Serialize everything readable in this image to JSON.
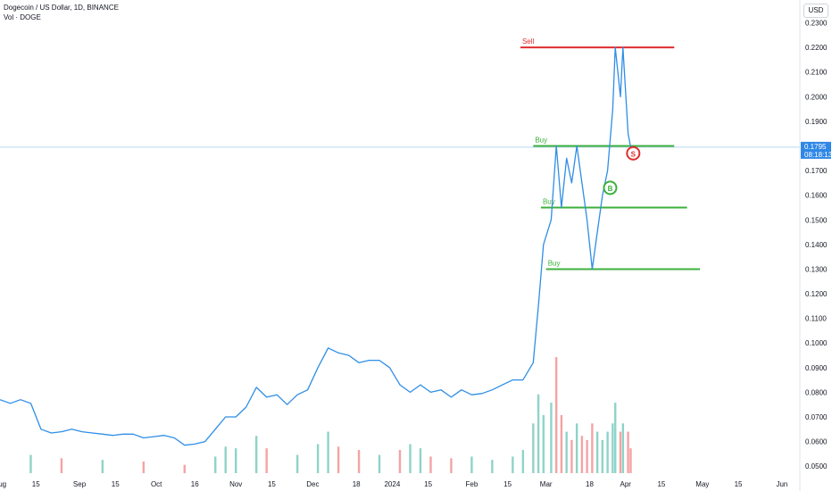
{
  "header": {
    "symbol_line": "Dogecoin / US Dollar, 1D, BINANCE",
    "volume_label": "Vol · DOGE",
    "currency": "USD"
  },
  "price_tag": {
    "value": "0.1795",
    "countdown": "08:18:13"
  },
  "colors": {
    "price_line": "#2e8ee6",
    "sell_line": "#e02d2d",
    "buy_line": "#3db03d",
    "volume_up": "#8fd3c8",
    "volume_down": "#f5a3a3",
    "tag_bg": "#2f87e6",
    "current_price_line": "#b8d9f3"
  },
  "chart_data": {
    "type": "line",
    "ylim": [
      0.045,
      0.232
    ],
    "yticks": [
      "0.2300",
      "0.2200",
      "0.2100",
      "0.2000",
      "0.1900",
      "0.1800",
      "0.1700",
      "0.1600",
      "0.1500",
      "0.1400",
      "0.1300",
      "0.1200",
      "0.1100",
      "0.1000",
      "0.0900",
      "0.0800",
      "0.0700",
      "0.0600",
      "0.0500"
    ],
    "xrange": [
      "2023-08-01",
      "2024-06-08"
    ],
    "xticks": [
      {
        "date": "2023-08-01",
        "label": "Aug"
      },
      {
        "date": "2023-08-15",
        "label": "15"
      },
      {
        "date": "2023-09-01",
        "label": "Sep"
      },
      {
        "date": "2023-09-15",
        "label": "15"
      },
      {
        "date": "2023-10-01",
        "label": "Oct"
      },
      {
        "date": "2023-10-16",
        "label": "16"
      },
      {
        "date": "2023-11-01",
        "label": "Nov"
      },
      {
        "date": "2023-11-15",
        "label": "15"
      },
      {
        "date": "2023-12-01",
        "label": "Dec"
      },
      {
        "date": "2023-12-18",
        "label": "18"
      },
      {
        "date": "2024-01-01",
        "label": "2024"
      },
      {
        "date": "2024-01-15",
        "label": "15"
      },
      {
        "date": "2024-02-01",
        "label": "Feb"
      },
      {
        "date": "2024-02-15",
        "label": "15"
      },
      {
        "date": "2024-03-01",
        "label": "Mar"
      },
      {
        "date": "2024-03-18",
        "label": "18"
      },
      {
        "date": "2024-04-01",
        "label": "Apr"
      },
      {
        "date": "2024-04-15",
        "label": "15"
      },
      {
        "date": "2024-05-01",
        "label": "May"
      },
      {
        "date": "2024-05-15",
        "label": "15"
      },
      {
        "date": "2024-06-01",
        "label": "Jun"
      }
    ],
    "series": [
      {
        "points": [
          [
            "2023-08-01",
            0.077
          ],
          [
            "2023-08-05",
            0.0755
          ],
          [
            "2023-08-09",
            0.077
          ],
          [
            "2023-08-13",
            0.0755
          ],
          [
            "2023-08-17",
            0.065
          ],
          [
            "2023-08-21",
            0.0635
          ],
          [
            "2023-08-25",
            0.064
          ],
          [
            "2023-08-29",
            0.065
          ],
          [
            "2023-09-02",
            0.064
          ],
          [
            "2023-09-06",
            0.0635
          ],
          [
            "2023-09-10",
            0.063
          ],
          [
            "2023-09-14",
            0.0625
          ],
          [
            "2023-09-18",
            0.063
          ],
          [
            "2023-09-22",
            0.063
          ],
          [
            "2023-09-26",
            0.0615
          ],
          [
            "2023-09-30",
            0.062
          ],
          [
            "2023-10-04",
            0.0625
          ],
          [
            "2023-10-08",
            0.0615
          ],
          [
            "2023-10-12",
            0.0585
          ],
          [
            "2023-10-16",
            0.059
          ],
          [
            "2023-10-20",
            0.06
          ],
          [
            "2023-10-24",
            0.065
          ],
          [
            "2023-10-28",
            0.07
          ],
          [
            "2023-11-01",
            0.07
          ],
          [
            "2023-11-05",
            0.074
          ],
          [
            "2023-11-09",
            0.082
          ],
          [
            "2023-11-13",
            0.078
          ],
          [
            "2023-11-17",
            0.079
          ],
          [
            "2023-11-21",
            0.075
          ],
          [
            "2023-11-25",
            0.079
          ],
          [
            "2023-11-29",
            0.081
          ],
          [
            "2023-12-03",
            0.09
          ],
          [
            "2023-12-07",
            0.098
          ],
          [
            "2023-12-11",
            0.096
          ],
          [
            "2023-12-15",
            0.095
          ],
          [
            "2023-12-19",
            0.092
          ],
          [
            "2023-12-23",
            0.093
          ],
          [
            "2023-12-27",
            0.093
          ],
          [
            "2023-12-31",
            0.09
          ],
          [
            "2024-01-04",
            0.083
          ],
          [
            "2024-01-08",
            0.08
          ],
          [
            "2024-01-12",
            0.083
          ],
          [
            "2024-01-16",
            0.08
          ],
          [
            "2024-01-20",
            0.081
          ],
          [
            "2024-01-24",
            0.078
          ],
          [
            "2024-01-28",
            0.081
          ],
          [
            "2024-02-01",
            0.079
          ],
          [
            "2024-02-05",
            0.0795
          ],
          [
            "2024-02-09",
            0.081
          ],
          [
            "2024-02-13",
            0.083
          ],
          [
            "2024-02-17",
            0.085
          ],
          [
            "2024-02-21",
            0.085
          ],
          [
            "2024-02-25",
            0.092
          ],
          [
            "2024-02-27",
            0.115
          ],
          [
            "2024-02-29",
            0.14
          ],
          [
            "2024-03-03",
            0.15
          ],
          [
            "2024-03-05",
            0.18
          ],
          [
            "2024-03-07",
            0.155
          ],
          [
            "2024-03-09",
            0.175
          ],
          [
            "2024-03-11",
            0.165
          ],
          [
            "2024-03-13",
            0.18
          ],
          [
            "2024-03-15",
            0.165
          ],
          [
            "2024-03-17",
            0.15
          ],
          [
            "2024-03-19",
            0.13
          ],
          [
            "2024-03-21",
            0.145
          ],
          [
            "2024-03-23",
            0.16
          ],
          [
            "2024-03-25",
            0.17
          ],
          [
            "2024-03-27",
            0.195
          ],
          [
            "2024-03-28",
            0.22
          ],
          [
            "2024-03-30",
            0.2
          ],
          [
            "2024-03-31",
            0.22
          ],
          [
            "2024-04-02",
            0.185
          ],
          [
            "2024-04-03",
            0.1795
          ]
        ]
      }
    ],
    "volume": [
      {
        "date": "2023-08-13",
        "value": 0.022,
        "dir": "up"
      },
      {
        "date": "2023-08-25",
        "value": 0.018,
        "dir": "down"
      },
      {
        "date": "2023-09-10",
        "value": 0.016,
        "dir": "up"
      },
      {
        "date": "2023-09-26",
        "value": 0.014,
        "dir": "down"
      },
      {
        "date": "2023-10-12",
        "value": 0.01,
        "dir": "down"
      },
      {
        "date": "2023-10-24",
        "value": 0.02,
        "dir": "up"
      },
      {
        "date": "2023-10-28",
        "value": 0.032,
        "dir": "up"
      },
      {
        "date": "2023-11-01",
        "value": 0.03,
        "dir": "up"
      },
      {
        "date": "2023-11-09",
        "value": 0.045,
        "dir": "up"
      },
      {
        "date": "2023-11-13",
        "value": 0.03,
        "dir": "down"
      },
      {
        "date": "2023-11-25",
        "value": 0.022,
        "dir": "up"
      },
      {
        "date": "2023-12-03",
        "value": 0.035,
        "dir": "up"
      },
      {
        "date": "2023-12-07",
        "value": 0.05,
        "dir": "up"
      },
      {
        "date": "2023-12-11",
        "value": 0.032,
        "dir": "down"
      },
      {
        "date": "2023-12-19",
        "value": 0.028,
        "dir": "down"
      },
      {
        "date": "2023-12-27",
        "value": 0.022,
        "dir": "up"
      },
      {
        "date": "2024-01-04",
        "value": 0.028,
        "dir": "down"
      },
      {
        "date": "2024-01-08",
        "value": 0.035,
        "dir": "up"
      },
      {
        "date": "2024-01-12",
        "value": 0.03,
        "dir": "up"
      },
      {
        "date": "2024-01-16",
        "value": 0.02,
        "dir": "down"
      },
      {
        "date": "2024-01-24",
        "value": 0.018,
        "dir": "down"
      },
      {
        "date": "2024-02-01",
        "value": 0.02,
        "dir": "up"
      },
      {
        "date": "2024-02-09",
        "value": 0.016,
        "dir": "up"
      },
      {
        "date": "2024-02-17",
        "value": 0.02,
        "dir": "up"
      },
      {
        "date": "2024-02-21",
        "value": 0.028,
        "dir": "up"
      },
      {
        "date": "2024-02-25",
        "value": 0.06,
        "dir": "up"
      },
      {
        "date": "2024-02-27",
        "value": 0.095,
        "dir": "up"
      },
      {
        "date": "2024-02-29",
        "value": 0.07,
        "dir": "up"
      },
      {
        "date": "2024-03-03",
        "value": 0.085,
        "dir": "up"
      },
      {
        "date": "2024-03-05",
        "value": 0.14,
        "dir": "down"
      },
      {
        "date": "2024-03-07",
        "value": 0.07,
        "dir": "down"
      },
      {
        "date": "2024-03-09",
        "value": 0.05,
        "dir": "up"
      },
      {
        "date": "2024-03-11",
        "value": 0.04,
        "dir": "down"
      },
      {
        "date": "2024-03-13",
        "value": 0.06,
        "dir": "up"
      },
      {
        "date": "2024-03-15",
        "value": 0.045,
        "dir": "down"
      },
      {
        "date": "2024-03-17",
        "value": 0.04,
        "dir": "down"
      },
      {
        "date": "2024-03-19",
        "value": 0.06,
        "dir": "down"
      },
      {
        "date": "2024-03-21",
        "value": 0.05,
        "dir": "up"
      },
      {
        "date": "2024-03-23",
        "value": 0.04,
        "dir": "up"
      },
      {
        "date": "2024-03-25",
        "value": 0.05,
        "dir": "up"
      },
      {
        "date": "2024-03-27",
        "value": 0.06,
        "dir": "up"
      },
      {
        "date": "2024-03-28",
        "value": 0.085,
        "dir": "up"
      },
      {
        "date": "2024-03-30",
        "value": 0.05,
        "dir": "down"
      },
      {
        "date": "2024-03-31",
        "value": 0.06,
        "dir": "up"
      },
      {
        "date": "2024-04-02",
        "value": 0.05,
        "dir": "down"
      },
      {
        "date": "2024-04-03",
        "value": 0.03,
        "dir": "down"
      }
    ],
    "lines": [
      {
        "label": "Sell",
        "kind": "sell",
        "value": 0.22,
        "from": "2024-02-20",
        "to": "2024-04-20"
      },
      {
        "label": "Buy",
        "kind": "buy",
        "value": 0.18,
        "from": "2024-02-25",
        "to": "2024-04-20"
      },
      {
        "label": "Buy",
        "kind": "buy",
        "value": 0.155,
        "from": "2024-02-28",
        "to": "2024-04-25"
      },
      {
        "label": "Buy",
        "kind": "buy",
        "value": 0.13,
        "from": "2024-03-01",
        "to": "2024-04-30"
      }
    ],
    "markers": [
      {
        "text": "B",
        "kind": "buy",
        "date": "2024-03-26",
        "value": 0.163
      },
      {
        "text": "S",
        "kind": "sell",
        "date": "2024-04-04",
        "value": 0.177
      }
    ],
    "current_price": 0.1795
  }
}
